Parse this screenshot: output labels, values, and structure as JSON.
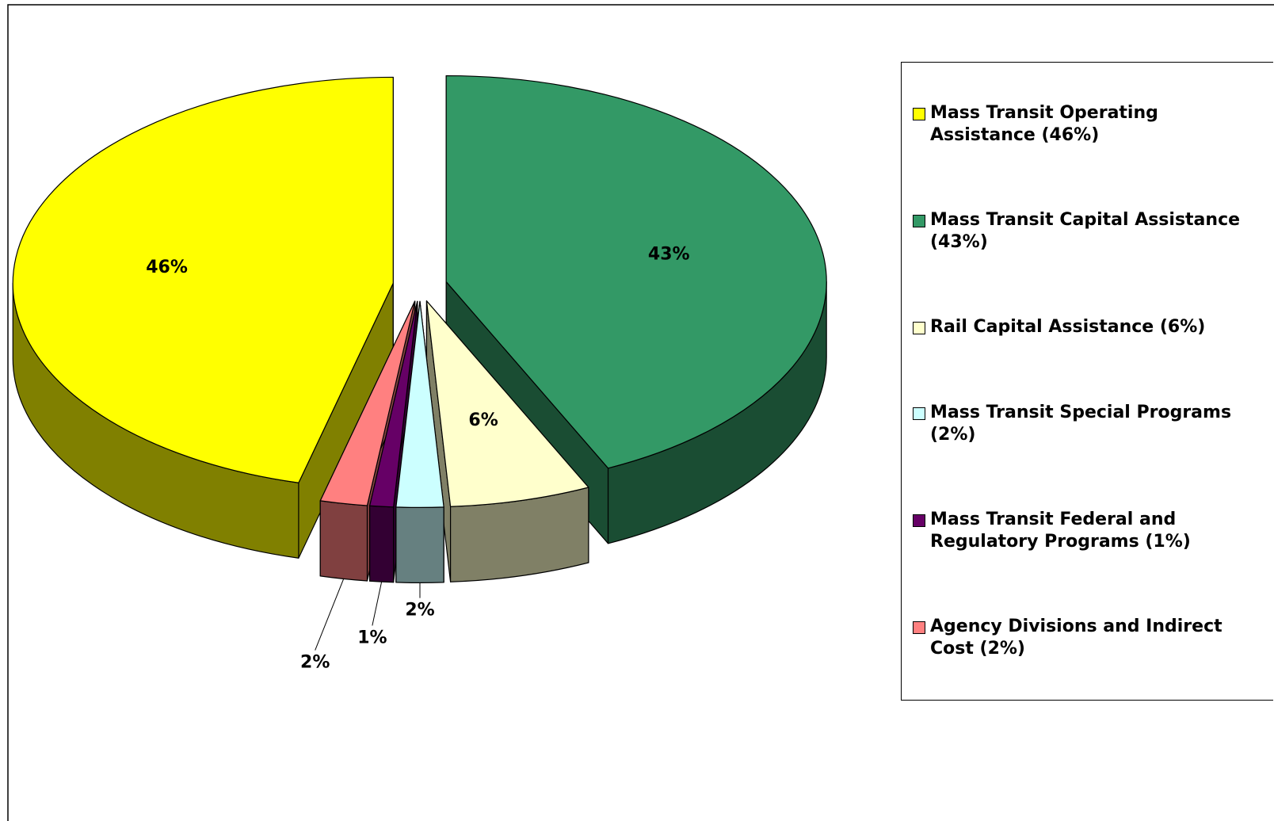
{
  "chart_data": {
    "type": "pie",
    "categories": [
      "Mass Transit Operating Assistance (46%)",
      "Mass Transit Capital Assistance  (43%)",
      "Rail Capital Assistance (6%)",
      "Mass Transit Special Programs  (2%)",
      "Mass Transit Federal and Regulatory Programs (1%)",
      "Agency Divisions and Indirect Cost (2%)"
    ],
    "values": [
      46,
      43,
      6,
      2,
      1,
      2
    ],
    "value_labels": [
      "46%",
      "43%",
      "6%",
      "2%",
      "1%",
      "2%"
    ],
    "colors": [
      "#ffff00",
      "#339966",
      "#ffffcc",
      "#ccffff",
      "#660066",
      "#ff8080"
    ],
    "legend": "right"
  }
}
